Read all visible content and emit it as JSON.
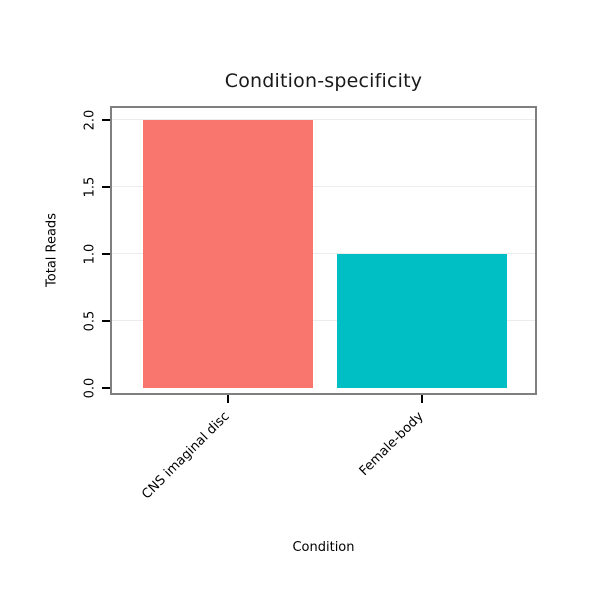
{
  "chart_data": {
    "type": "bar",
    "title": "Condition-specificity",
    "xlabel": "Condition",
    "ylabel": "Total Reads",
    "categories": [
      "CNS imaginal disc",
      "Female-body"
    ],
    "values": [
      2.0,
      1.0
    ],
    "bar_colors": [
      "#F8766D",
      "#00BFC4"
    ],
    "ylim": [
      0,
      2.0
    ],
    "yticks": [
      0,
      0.5,
      1,
      1.5,
      2
    ],
    "ytick_labels": [
      "0.0",
      "0.5",
      "1.0",
      "1.5",
      "2.0"
    ],
    "grid": true,
    "legend": "none"
  }
}
